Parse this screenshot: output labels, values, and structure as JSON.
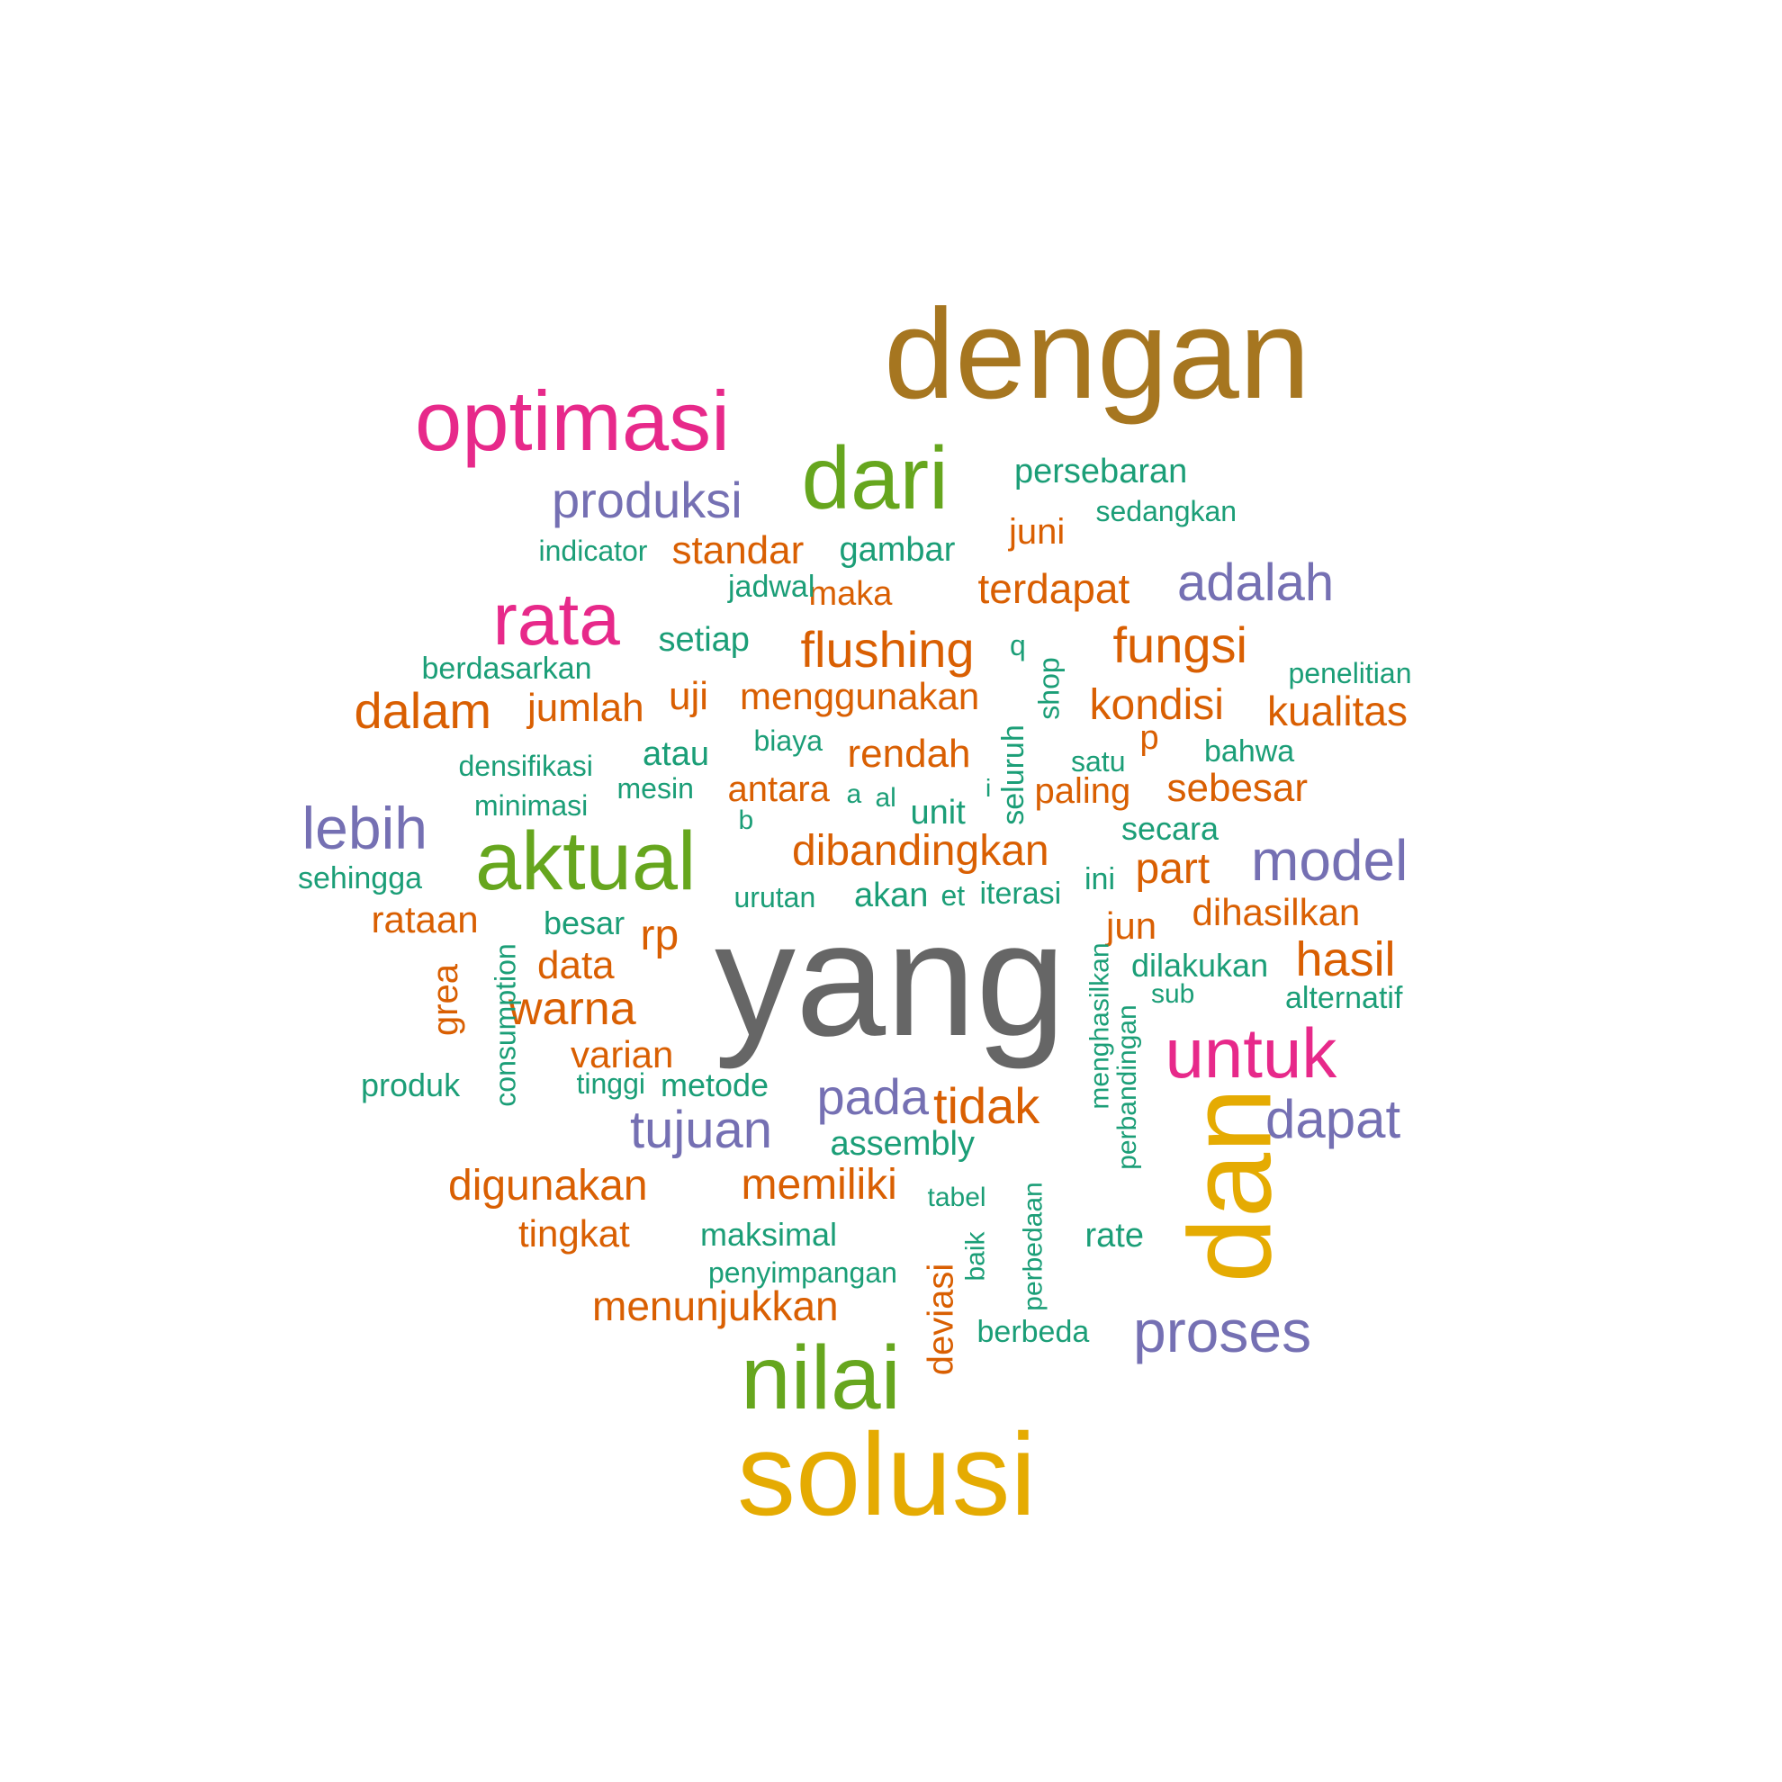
{
  "palette": {
    "brown": "#a67620",
    "gray": "#666666",
    "gold": "#e5ab02",
    "green": "#66a61e",
    "pink": "#e7298a",
    "purple": "#7570b3",
    "orange": "#d95f02",
    "teal": "#1b9e77"
  },
  "words": [
    {
      "text": "dengan",
      "color": "brown"
    },
    {
      "text": "yang",
      "color": "gray"
    },
    {
      "text": "solusi",
      "color": "gold"
    },
    {
      "text": "dan",
      "color": "gold"
    },
    {
      "text": "optimasi",
      "color": "pink"
    },
    {
      "text": "aktual",
      "color": "green"
    },
    {
      "text": "nilai",
      "color": "green"
    },
    {
      "text": "dari",
      "color": "green"
    },
    {
      "text": "rata",
      "color": "pink"
    },
    {
      "text": "untuk",
      "color": "pink"
    },
    {
      "text": "lebih",
      "color": "purple"
    },
    {
      "text": "model",
      "color": "purple"
    },
    {
      "text": "proses",
      "color": "purple"
    },
    {
      "text": "produksi",
      "color": "purple"
    },
    {
      "text": "adalah",
      "color": "purple"
    },
    {
      "text": "dapat",
      "color": "purple"
    },
    {
      "text": "pada",
      "color": "purple"
    },
    {
      "text": "tujuan",
      "color": "purple"
    },
    {
      "text": "flushing",
      "color": "orange"
    },
    {
      "text": "fungsi",
      "color": "orange"
    },
    {
      "text": "dalam",
      "color": "orange"
    },
    {
      "text": "kondisi",
      "color": "orange"
    },
    {
      "text": "kualitas",
      "color": "orange"
    },
    {
      "text": "hasil",
      "color": "orange"
    },
    {
      "text": "tidak",
      "color": "orange"
    },
    {
      "text": "warna",
      "color": "orange"
    },
    {
      "text": "dibandingkan",
      "color": "orange"
    },
    {
      "text": "sebesar",
      "color": "orange"
    },
    {
      "text": "part",
      "color": "orange"
    },
    {
      "text": "digunakan",
      "color": "orange"
    },
    {
      "text": "memiliki",
      "color": "orange"
    },
    {
      "text": "menunjukkan",
      "color": "orange"
    },
    {
      "text": "standar",
      "color": "orange"
    },
    {
      "text": "terdapat",
      "color": "orange"
    },
    {
      "text": "jumlah",
      "color": "orange"
    },
    {
      "text": "uji",
      "color": "orange"
    },
    {
      "text": "menggunakan",
      "color": "orange"
    },
    {
      "text": "rendah",
      "color": "orange"
    },
    {
      "text": "antara",
      "color": "orange"
    },
    {
      "text": "paling",
      "color": "orange"
    },
    {
      "text": "rataan",
      "color": "orange"
    },
    {
      "text": "rp",
      "color": "orange"
    },
    {
      "text": "data",
      "color": "orange"
    },
    {
      "text": "jun",
      "color": "orange"
    },
    {
      "text": "dihasilkan",
      "color": "orange"
    },
    {
      "text": "varian",
      "color": "orange"
    },
    {
      "text": "tingkat",
      "color": "orange"
    },
    {
      "text": "juni",
      "color": "orange"
    },
    {
      "text": "maka",
      "color": "orange"
    },
    {
      "text": "grea",
      "color": "orange"
    },
    {
      "text": "deviasi",
      "color": "orange"
    },
    {
      "text": "p",
      "color": "orange"
    },
    {
      "text": "persebaran",
      "color": "teal"
    },
    {
      "text": "sedangkan",
      "color": "teal"
    },
    {
      "text": "indicator",
      "color": "teal"
    },
    {
      "text": "gambar",
      "color": "teal"
    },
    {
      "text": "jadwal",
      "color": "teal"
    },
    {
      "text": "setiap",
      "color": "teal"
    },
    {
      "text": "berdasarkan",
      "color": "teal"
    },
    {
      "text": "q",
      "color": "teal"
    },
    {
      "text": "shop",
      "color": "teal"
    },
    {
      "text": "penelitian",
      "color": "teal"
    },
    {
      "text": "seluruh",
      "color": "teal"
    },
    {
      "text": "densifikasi",
      "color": "teal"
    },
    {
      "text": "atau",
      "color": "teal"
    },
    {
      "text": "biaya",
      "color": "teal"
    },
    {
      "text": "satu",
      "color": "teal"
    },
    {
      "text": "bahwa",
      "color": "teal"
    },
    {
      "text": "mesin",
      "color": "teal"
    },
    {
      "text": "minimasi",
      "color": "teal"
    },
    {
      "text": "a",
      "color": "teal"
    },
    {
      "text": "al",
      "color": "teal"
    },
    {
      "text": "i",
      "color": "teal"
    },
    {
      "text": "b",
      "color": "teal"
    },
    {
      "text": "unit",
      "color": "teal"
    },
    {
      "text": "secara",
      "color": "teal"
    },
    {
      "text": "sehingga",
      "color": "teal"
    },
    {
      "text": "urutan",
      "color": "teal"
    },
    {
      "text": "akan",
      "color": "teal"
    },
    {
      "text": "et",
      "color": "teal"
    },
    {
      "text": "iterasi",
      "color": "teal"
    },
    {
      "text": "ini",
      "color": "teal"
    },
    {
      "text": "besar",
      "color": "teal"
    },
    {
      "text": "consumption",
      "color": "teal"
    },
    {
      "text": "dilakukan",
      "color": "teal"
    },
    {
      "text": "menghasilkan",
      "color": "teal"
    },
    {
      "text": "sub",
      "color": "teal"
    },
    {
      "text": "alternatif",
      "color": "teal"
    },
    {
      "text": "perbandingan",
      "color": "teal"
    },
    {
      "text": "produk",
      "color": "teal"
    },
    {
      "text": "tinggi",
      "color": "teal"
    },
    {
      "text": "metode",
      "color": "teal"
    },
    {
      "text": "assembly",
      "color": "teal"
    },
    {
      "text": "tabel",
      "color": "teal"
    },
    {
      "text": "maksimal",
      "color": "teal"
    },
    {
      "text": "rate",
      "color": "teal"
    },
    {
      "text": "penyimpangan",
      "color": "teal"
    },
    {
      "text": "baik",
      "color": "teal"
    },
    {
      "text": "perbedaan",
      "color": "teal"
    },
    {
      "text": "berbeda",
      "color": "teal"
    }
  ]
}
